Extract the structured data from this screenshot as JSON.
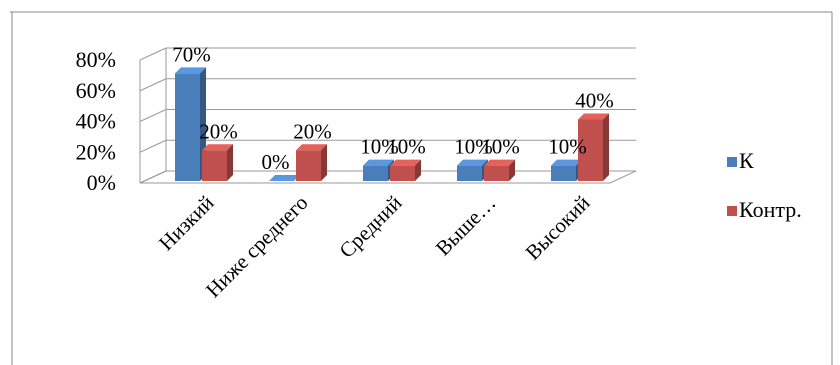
{
  "chart_data": {
    "type": "bar",
    "style": "3d-clustered-column",
    "title": "",
    "xlabel": "",
    "ylabel": "",
    "categories": [
      "Низкий",
      "Ниже среднего",
      "Средний",
      "Выше…",
      "Высокий"
    ],
    "series": [
      {
        "name": "К",
        "color": "#4a7ebb",
        "values": [
          70,
          0,
          10,
          10,
          10
        ]
      },
      {
        "name": "Контр.",
        "color": "#c0504d",
        "values": [
          20,
          20,
          10,
          10,
          40
        ]
      }
    ],
    "ylim": [
      0,
      80
    ],
    "yticks": [
      0,
      20,
      40,
      60,
      80
    ],
    "ytick_labels": [
      "0%",
      "20%",
      "40%",
      "60%",
      "80%"
    ],
    "data_labels": [
      [
        "70%",
        "0%",
        "10%",
        "10%",
        "10%"
      ],
      [
        "20%",
        "20%",
        "10%",
        "10%",
        "40%"
      ]
    ],
    "grid": true,
    "legend_position": "right"
  }
}
